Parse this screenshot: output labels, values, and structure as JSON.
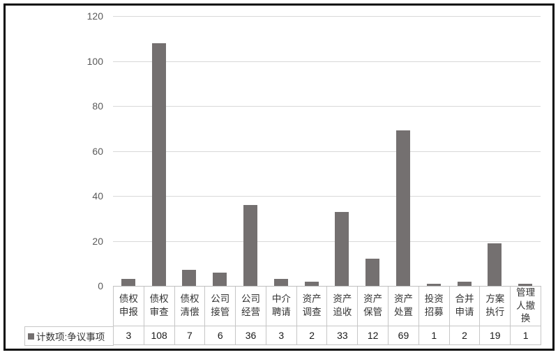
{
  "chart_data": {
    "type": "bar",
    "title": "",
    "xlabel": "",
    "ylabel": "",
    "categories": [
      "债权\n申报",
      "债权\n审查",
      "债权\n清偿",
      "公司\n接管",
      "公司\n经营",
      "中介\n聘请",
      "资产\n调查",
      "资产\n追收",
      "资产\n保管",
      "资产\n处置",
      "投资\n招募",
      "合并\n申请",
      "方案\n执行",
      "管理\n人撤\n换"
    ],
    "series": [
      {
        "name": "计数项:争议事项",
        "values": [
          3,
          108,
          7,
          6,
          36,
          3,
          2,
          33,
          12,
          69,
          1,
          2,
          19,
          1
        ]
      }
    ],
    "ylim": [
      0,
      120
    ],
    "yticks": [
      0,
      20,
      40,
      60,
      80,
      100,
      120
    ],
    "grid": "horizontal",
    "legend_position": "data-table-left",
    "colors": {
      "bar": "#747070",
      "gridline": "#d8d8d8",
      "table_border": "#c6c6c6",
      "axis_text": "#595959",
      "label_text": "#333333",
      "frame_border": "#0c0c0c"
    }
  }
}
